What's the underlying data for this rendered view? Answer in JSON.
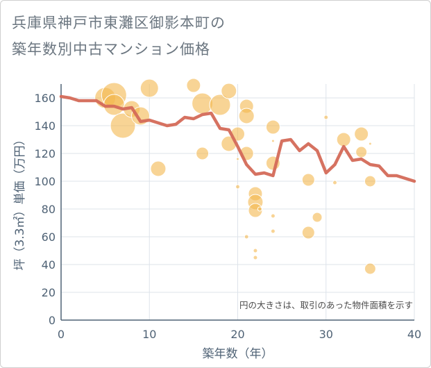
{
  "title_lines": [
    "兵庫県神戸市東灘区御影本町の",
    "築年数別中古マンション価格"
  ],
  "colors": {
    "bubble": "#f3b84e",
    "line": "#d46a58",
    "grid": "#dde3ea",
    "axis": "#4f6275"
  },
  "chart_data": {
    "type": "scatter",
    "xlabel": "築年数（年）",
    "ylabel": "坪（3.3㎡）単価（万円）",
    "xlim": [
      0,
      40
    ],
    "ylim": [
      0,
      170
    ],
    "xticks": [
      "0",
      "10",
      "20",
      "30",
      "40"
    ],
    "yticks": [
      "0",
      "20",
      "40",
      "60",
      "80",
      "100",
      "120",
      "140",
      "160"
    ],
    "note": "円の大きさは、取引のあった物件面積を示す",
    "grid": true,
    "bubbles": [
      {
        "x": 5,
        "y": 160,
        "r": 15
      },
      {
        "x": 6,
        "y": 162,
        "r": 18
      },
      {
        "x": 6,
        "y": 155,
        "r": 15
      },
      {
        "x": 7,
        "y": 140,
        "r": 18
      },
      {
        "x": 8,
        "y": 152,
        "r": 12
      },
      {
        "x": 9,
        "y": 147,
        "r": 13
      },
      {
        "x": 10,
        "y": 167,
        "r": 13
      },
      {
        "x": 11,
        "y": 109,
        "r": 11
      },
      {
        "x": 15,
        "y": 169,
        "r": 10
      },
      {
        "x": 16,
        "y": 156,
        "r": 15
      },
      {
        "x": 16,
        "y": 120,
        "r": 9
      },
      {
        "x": 18,
        "y": 155,
        "r": 15
      },
      {
        "x": 19,
        "y": 165,
        "r": 11
      },
      {
        "x": 19,
        "y": 127,
        "r": 11
      },
      {
        "x": 20,
        "y": 134,
        "r": 10
      },
      {
        "x": 20,
        "y": 116,
        "r": 2
      },
      {
        "x": 20,
        "y": 96,
        "r": 3
      },
      {
        "x": 21,
        "y": 154,
        "r": 10
      },
      {
        "x": 21,
        "y": 147,
        "r": 11
      },
      {
        "x": 21,
        "y": 120,
        "r": 10
      },
      {
        "x": 21,
        "y": 60,
        "r": 3
      },
      {
        "x": 22,
        "y": 91,
        "r": 10
      },
      {
        "x": 22,
        "y": 85,
        "r": 11
      },
      {
        "x": 22,
        "y": 79,
        "r": 10
      },
      {
        "x": 22,
        "y": 50,
        "r": 3
      },
      {
        "x": 22,
        "y": 45,
        "r": 3
      },
      {
        "x": 22.5,
        "y": 80,
        "r": 3
      },
      {
        "x": 24,
        "y": 139,
        "r": 10
      },
      {
        "x": 24,
        "y": 129,
        "r": 2
      },
      {
        "x": 24,
        "y": 113,
        "r": 10
      },
      {
        "x": 24,
        "y": 75,
        "r": 3
      },
      {
        "x": 24,
        "y": 64,
        "r": 3
      },
      {
        "x": 28,
        "y": 101,
        "r": 9
      },
      {
        "x": 28,
        "y": 63,
        "r": 9
      },
      {
        "x": 29,
        "y": 74,
        "r": 7
      },
      {
        "x": 30,
        "y": 146,
        "r": 3
      },
      {
        "x": 31,
        "y": 99,
        "r": 3
      },
      {
        "x": 32,
        "y": 130,
        "r": 10
      },
      {
        "x": 34,
        "y": 134,
        "r": 10
      },
      {
        "x": 34,
        "y": 121,
        "r": 8
      },
      {
        "x": 35,
        "y": 127,
        "r": 2
      },
      {
        "x": 35,
        "y": 100,
        "r": 8
      },
      {
        "x": 35,
        "y": 37,
        "r": 8
      }
    ],
    "line": {
      "x": [
        0,
        1,
        2,
        3,
        4,
        5,
        6,
        7,
        8,
        9,
        10,
        11,
        12,
        13,
        14,
        15,
        16,
        17,
        18,
        19,
        20,
        21,
        22,
        23,
        24,
        25,
        26,
        27,
        28,
        29,
        30,
        31,
        32,
        33,
        34,
        35,
        36,
        37,
        38,
        39,
        40
      ],
      "y": [
        161,
        160,
        158,
        158,
        158,
        154,
        154,
        152,
        153,
        143,
        144,
        142,
        140,
        141,
        146,
        145,
        148,
        149,
        138,
        137,
        125,
        112,
        105,
        106,
        104,
        129,
        130,
        122,
        127,
        122,
        106,
        112,
        125,
        115,
        116,
        112,
        111,
        104,
        104,
        102,
        100
      ]
    }
  }
}
